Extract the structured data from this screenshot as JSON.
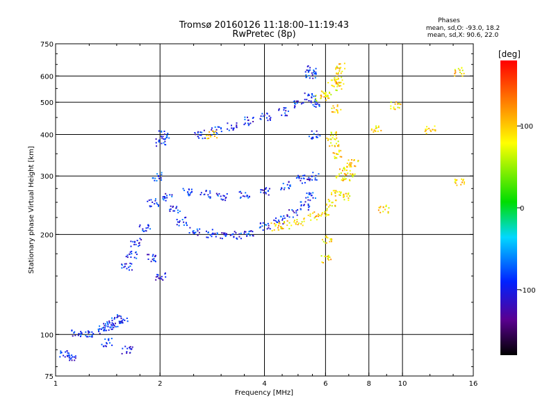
{
  "chart_data": {
    "type": "scatter",
    "title": "Tromsø 20160126 11:18:00–11:19:43",
    "subtitle": "RwPretec (8p)",
    "xlabel": "Frequency [MHz]",
    "ylabel": "Stationary phase Virtual Height [km]",
    "x_scale": "log",
    "y_scale": "log",
    "xlim": [
      1,
      16
    ],
    "ylim": [
      75,
      750
    ],
    "x_ticks": [
      1,
      2,
      4,
      6,
      8,
      10,
      16
    ],
    "x_tick_labels": [
      "1",
      "2",
      "4",
      "6",
      "8",
      "10",
      "16"
    ],
    "x_grid": [
      2,
      4,
      6,
      8,
      10
    ],
    "y_ticks": [
      75,
      100,
      200,
      300,
      400,
      500,
      600,
      750
    ],
    "y_tick_labels": [
      "75",
      "100",
      "200",
      "300",
      "400",
      "500",
      "600",
      "750"
    ],
    "y_grid": [
      100,
      200,
      300,
      400,
      500,
      600
    ],
    "grid": true,
    "legend": {
      "title": "Phases",
      "lines": [
        "mean, sd,O: -93.0, 18.2",
        "mean, sd,X:  90.6, 22.0"
      ]
    },
    "colorbar": {
      "label": "[deg]",
      "range": [
        -180,
        180
      ],
      "ticks": [
        100,
        0,
        -100
      ],
      "tick_labels": [
        "100",
        "0",
        "-100"
      ],
      "colormap": "rainbow"
    },
    "series": [
      {
        "name": "O",
        "phase_mean": -93.0,
        "points": [
          [
            1.05,
            88
          ],
          [
            1.1,
            85
          ],
          [
            1.15,
            102
          ],
          [
            1.25,
            100
          ],
          [
            1.35,
            104
          ],
          [
            1.4,
            106
          ],
          [
            1.45,
            108
          ],
          [
            1.5,
            110
          ],
          [
            1.55,
            112
          ],
          [
            1.6,
            160
          ],
          [
            1.65,
            175
          ],
          [
            1.7,
            190
          ],
          [
            1.8,
            210
          ],
          [
            1.9,
            250
          ],
          [
            1.95,
            300
          ],
          [
            2.0,
            380
          ],
          [
            2.05,
            400
          ],
          [
            2.0,
            150
          ],
          [
            1.9,
            170
          ],
          [
            2.1,
            260
          ],
          [
            2.2,
            240
          ],
          [
            2.3,
            220
          ],
          [
            2.5,
            205
          ],
          [
            2.8,
            202
          ],
          [
            3.0,
            200
          ],
          [
            3.3,
            200
          ],
          [
            3.6,
            204
          ],
          [
            4.0,
            212
          ],
          [
            4.4,
            222
          ],
          [
            4.8,
            232
          ],
          [
            5.2,
            245
          ],
          [
            5.4,
            262
          ],
          [
            5.5,
            300
          ],
          [
            5.55,
            400
          ],
          [
            5.6,
            500
          ],
          [
            5.4,
            520
          ],
          [
            5.0,
            495
          ],
          [
            4.5,
            470
          ],
          [
            4.0,
            455
          ],
          [
            3.6,
            440
          ],
          [
            3.2,
            425
          ],
          [
            2.9,
            412
          ],
          [
            2.6,
            402
          ],
          [
            2.4,
            270
          ],
          [
            2.7,
            265
          ],
          [
            3.0,
            262
          ],
          [
            3.5,
            264
          ],
          [
            4.0,
            270
          ],
          [
            4.6,
            282
          ],
          [
            5.1,
            295
          ],
          [
            5.5,
            628
          ],
          [
            5.4,
            610
          ],
          [
            1.4,
            95
          ],
          [
            1.6,
            90
          ]
        ]
      },
      {
        "name": "X",
        "phase_mean": 90.6,
        "points": [
          [
            4.3,
            212
          ],
          [
            4.6,
            215
          ],
          [
            5.0,
            220
          ],
          [
            5.5,
            228
          ],
          [
            5.9,
            235
          ],
          [
            6.2,
            250
          ],
          [
            6.4,
            270
          ],
          [
            6.6,
            300
          ],
          [
            6.8,
            320
          ],
          [
            6.5,
            350
          ],
          [
            6.3,
            380
          ],
          [
            6.2,
            400
          ],
          [
            6.4,
            480
          ],
          [
            6.5,
            560
          ],
          [
            6.6,
            640
          ],
          [
            6.5,
            600
          ],
          [
            6.3,
            575
          ],
          [
            6.0,
            530
          ],
          [
            5.8,
            520
          ],
          [
            7.0,
            300
          ],
          [
            7.2,
            330
          ],
          [
            6.9,
            260
          ],
          [
            8.4,
            420
          ],
          [
            8.8,
            240
          ],
          [
            12,
            415
          ],
          [
            9.5,
            490
          ],
          [
            14.5,
            288
          ],
          [
            14.5,
            620
          ],
          [
            6.0,
            195
          ],
          [
            6.0,
            170
          ],
          [
            2.8,
            400
          ]
        ]
      }
    ]
  }
}
